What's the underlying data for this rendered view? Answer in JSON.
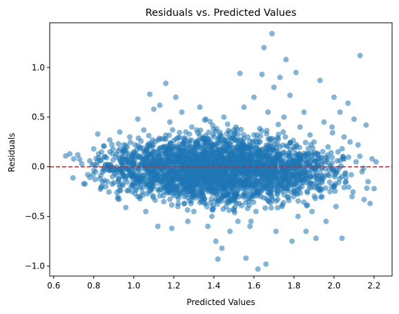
{
  "chart_data": {
    "type": "scatter",
    "title": "Residuals vs. Predicted Values",
    "xlabel": "Predicted Values",
    "ylabel": "Residuals",
    "xlim": [
      0.58,
      2.29
    ],
    "ylim": [
      -1.1,
      1.45
    ],
    "xticks": [
      0.6,
      0.8,
      1.0,
      1.2,
      1.4,
      1.6,
      1.8,
      2.0,
      2.2
    ],
    "xtick_labels": [
      "0.6",
      "0.8",
      "1.0",
      "1.2",
      "1.4",
      "1.6",
      "1.8",
      "2.0",
      "2.2"
    ],
    "yticks": [
      -1.0,
      -0.5,
      0.0,
      0.5,
      1.0
    ],
    "ytick_labels": [
      "−1.0",
      "−0.5",
      "0.0",
      "0.5",
      "1.0"
    ],
    "grid": false,
    "point_color": "#1f77b4",
    "point_alpha": 0.55,
    "reference_line": {
      "y": 0,
      "color": "#e41a1c",
      "style": "dashed"
    },
    "points": [
      [
        0.66,
        0.11
      ],
      [
        0.68,
        0.13
      ],
      [
        0.7,
        0.08
      ],
      [
        0.72,
        0.12
      ],
      [
        0.74,
        0.03
      ],
      [
        0.75,
        -0.17
      ],
      [
        0.77,
        -0.08
      ],
      [
        0.78,
        0.06
      ],
      [
        0.8,
        0.18
      ],
      [
        0.81,
        -0.05
      ],
      [
        0.82,
        0.33
      ],
      [
        0.83,
        -0.12
      ],
      [
        0.85,
        0.21
      ],
      [
        0.86,
        -0.2
      ],
      [
        0.87,
        0.02
      ],
      [
        0.88,
        0.27
      ],
      [
        0.9,
        -0.16
      ],
      [
        0.91,
        0.1
      ],
      [
        0.92,
        -0.32
      ],
      [
        0.93,
        0.35
      ],
      [
        0.94,
        -0.05
      ],
      [
        0.95,
        0.22
      ],
      [
        0.96,
        -0.41
      ],
      [
        0.97,
        0.05
      ],
      [
        0.98,
        0.3
      ],
      [
        0.99,
        -0.25
      ],
      [
        1.0,
        0.15
      ],
      [
        1.01,
        -0.12
      ],
      [
        1.02,
        0.48
      ],
      [
        1.03,
        -0.3
      ],
      [
        1.04,
        0.08
      ],
      [
        1.05,
        0.37
      ],
      [
        1.06,
        -0.45
      ],
      [
        1.07,
        0.2
      ],
      [
        1.08,
        0.73
      ],
      [
        1.09,
        -0.2
      ],
      [
        1.1,
        0.58
      ],
      [
        1.11,
        0.0
      ],
      [
        1.12,
        -0.6
      ],
      [
        1.13,
        0.62
      ],
      [
        1.14,
        0.28
      ],
      [
        1.15,
        -0.35
      ],
      [
        1.16,
        0.84
      ],
      [
        1.17,
        -0.08
      ],
      [
        1.18,
        0.45
      ],
      [
        1.19,
        -0.62
      ],
      [
        1.2,
        0.2
      ],
      [
        1.21,
        0.7
      ],
      [
        1.22,
        -0.4
      ],
      [
        1.23,
        0.1
      ],
      [
        1.24,
        0.55
      ],
      [
        1.25,
        -0.25
      ],
      [
        1.26,
        0.35
      ],
      [
        1.27,
        -0.55
      ],
      [
        1.28,
        0.05
      ],
      [
        1.29,
        0.4
      ],
      [
        1.3,
        -0.45
      ],
      [
        1.31,
        0.25
      ],
      [
        1.32,
        -0.15
      ],
      [
        1.33,
        0.6
      ],
      [
        1.34,
        -0.35
      ],
      [
        1.35,
        0.15
      ],
      [
        1.36,
        0.48
      ],
      [
        1.37,
        -0.6
      ],
      [
        1.38,
        0.0
      ],
      [
        1.39,
        -0.5
      ],
      [
        1.4,
        0.3
      ],
      [
        1.41,
        -0.75
      ],
      [
        1.42,
        -0.93
      ],
      [
        1.43,
        0.1
      ],
      [
        1.44,
        -0.82
      ],
      [
        1.45,
        0.5
      ],
      [
        1.46,
        -0.4
      ],
      [
        1.47,
        0.2
      ],
      [
        1.48,
        -0.65
      ],
      [
        1.49,
        0.05
      ],
      [
        1.5,
        -0.3
      ],
      [
        1.51,
        0.4
      ],
      [
        1.52,
        -0.55
      ],
      [
        1.53,
        0.94
      ],
      [
        1.54,
        -0.15
      ],
      [
        1.55,
        0.6
      ],
      [
        1.56,
        -0.92
      ],
      [
        1.57,
        0.3
      ],
      [
        1.58,
        -0.6
      ],
      [
        1.59,
        0.1
      ],
      [
        1.6,
        0.7
      ],
      [
        1.61,
        -0.45
      ],
      [
        1.62,
        -1.03
      ],
      [
        1.63,
        0.25
      ],
      [
        1.64,
        0.93
      ],
      [
        1.65,
        1.2
      ],
      [
        1.66,
        -0.98
      ],
      [
        1.67,
        0.55
      ],
      [
        1.68,
        -0.2
      ],
      [
        1.69,
        1.34
      ],
      [
        1.7,
        0.8
      ],
      [
        1.71,
        -0.65
      ],
      [
        1.72,
        0.1
      ],
      [
        1.73,
        0.9
      ],
      [
        1.74,
        -0.4
      ],
      [
        1.75,
        0.5
      ],
      [
        1.76,
        1.08
      ],
      [
        1.77,
        -0.3
      ],
      [
        1.78,
        0.72
      ],
      [
        1.79,
        -0.75
      ],
      [
        1.8,
        0.2
      ],
      [
        1.81,
        0.95
      ],
      [
        1.82,
        -0.5
      ],
      [
        1.83,
        0.4
      ],
      [
        1.84,
        -0.2
      ],
      [
        1.85,
        0.55
      ],
      [
        1.86,
        -0.65
      ],
      [
        1.87,
        0.1
      ],
      [
        1.88,
        0.32
      ],
      [
        1.89,
        -0.45
      ],
      [
        1.9,
        0.25
      ],
      [
        1.91,
        -0.72
      ],
      [
        1.92,
        0.12
      ],
      [
        1.93,
        0.87
      ],
      [
        1.94,
        -0.3
      ],
      [
        1.95,
        0.45
      ],
      [
        1.96,
        -0.55
      ],
      [
        1.97,
        0.2
      ],
      [
        1.98,
        -0.25
      ],
      [
        1.99,
        0.4
      ],
      [
        2.0,
        0.7
      ],
      [
        2.01,
        -0.4
      ],
      [
        2.02,
        0.15
      ],
      [
        2.03,
        0.55
      ],
      [
        2.04,
        -0.72
      ],
      [
        2.05,
        0.3
      ],
      [
        2.06,
        -0.15
      ],
      [
        2.07,
        0.64
      ],
      [
        2.08,
        0.25
      ],
      [
        2.09,
        -0.3
      ],
      [
        2.1,
        0.48
      ],
      [
        2.11,
        0.05
      ],
      [
        2.12,
        0.22
      ],
      [
        2.13,
        1.12
      ],
      [
        2.14,
        -0.05
      ],
      [
        2.15,
        -0.33
      ],
      [
        2.16,
        0.42
      ],
      [
        2.17,
        -0.15
      ],
      [
        2.18,
        -0.37
      ],
      [
        2.19,
        0.08
      ],
      [
        2.2,
        -0.22
      ],
      [
        2.21,
        0.05
      ]
    ]
  }
}
